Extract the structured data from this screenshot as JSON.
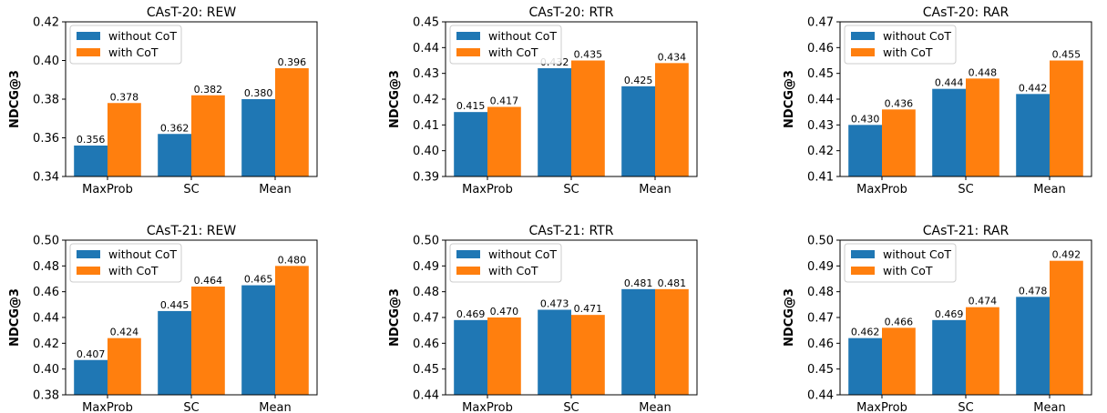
{
  "chart_data": [
    {
      "type": "bar",
      "title": "CAsT-20: REW",
      "ylabel": "NDCG@3",
      "categories": [
        "MaxProb",
        "SC",
        "Mean"
      ],
      "ylim": [
        0.34,
        0.42
      ],
      "yticks": [
        "0.34",
        "0.36",
        "0.38",
        "0.40",
        "0.42"
      ],
      "legend_position": "top-left",
      "series": [
        {
          "name": "without CoT",
          "values": [
            0.356,
            0.362,
            0.38
          ],
          "labels": [
            "0.356",
            "0.362",
            "0.380"
          ]
        },
        {
          "name": "with CoT",
          "values": [
            0.378,
            0.382,
            0.396
          ],
          "labels": [
            "0.378",
            "0.382",
            "0.396"
          ]
        }
      ]
    },
    {
      "type": "bar",
      "title": "CAsT-20: RTR",
      "ylabel": "NDCG@3",
      "categories": [
        "MaxProb",
        "SC",
        "Mean"
      ],
      "ylim": [
        0.39,
        0.45
      ],
      "yticks": [
        "0.39",
        "0.40",
        "0.41",
        "0.42",
        "0.43",
        "0.44",
        "0.45"
      ],
      "legend_position": "top-left",
      "series": [
        {
          "name": "without CoT",
          "values": [
            0.415,
            0.432,
            0.425
          ],
          "labels": [
            "0.415",
            "0.432",
            "0.425"
          ]
        },
        {
          "name": "with CoT",
          "values": [
            0.417,
            0.435,
            0.434
          ],
          "labels": [
            "0.417",
            "0.435",
            "0.434"
          ]
        }
      ]
    },
    {
      "type": "bar",
      "title": "CAsT-20: RAR",
      "ylabel": "NDCG@3",
      "categories": [
        "MaxProb",
        "SC",
        "Mean"
      ],
      "ylim": [
        0.41,
        0.47
      ],
      "yticks": [
        "0.41",
        "0.42",
        "0.43",
        "0.44",
        "0.45",
        "0.46",
        "0.47"
      ],
      "legend_position": "top-left",
      "series": [
        {
          "name": "without CoT",
          "values": [
            0.43,
            0.444,
            0.442
          ],
          "labels": [
            "0.430",
            "0.444",
            "0.442"
          ]
        },
        {
          "name": "with CoT",
          "values": [
            0.436,
            0.448,
            0.455
          ],
          "labels": [
            "0.436",
            "0.448",
            "0.455"
          ]
        }
      ]
    },
    {
      "type": "bar",
      "title": "CAsT-21: REW",
      "ylabel": "NDCG@3",
      "categories": [
        "MaxProb",
        "SC",
        "Mean"
      ],
      "ylim": [
        0.38,
        0.5
      ],
      "yticks": [
        "0.38",
        "0.40",
        "0.42",
        "0.44",
        "0.46",
        "0.48",
        "0.50"
      ],
      "legend_position": "top-left",
      "series": [
        {
          "name": "without CoT",
          "values": [
            0.407,
            0.445,
            0.465
          ],
          "labels": [
            "0.407",
            "0.445",
            "0.465"
          ]
        },
        {
          "name": "with CoT",
          "values": [
            0.424,
            0.464,
            0.48
          ],
          "labels": [
            "0.424",
            "0.464",
            "0.480"
          ]
        }
      ]
    },
    {
      "type": "bar",
      "title": "CAsT-21: RTR",
      "ylabel": "NDCG@3",
      "categories": [
        "MaxProb",
        "SC",
        "Mean"
      ],
      "ylim": [
        0.44,
        0.5
      ],
      "yticks": [
        "0.44",
        "0.45",
        "0.46",
        "0.47",
        "0.48",
        "0.49",
        "0.50"
      ],
      "legend_position": "top-left",
      "series": [
        {
          "name": "without CoT",
          "values": [
            0.469,
            0.473,
            0.481
          ],
          "labels": [
            "0.469",
            "0.473",
            "0.481"
          ]
        },
        {
          "name": "with CoT",
          "values": [
            0.47,
            0.471,
            0.481
          ],
          "labels": [
            "0.470",
            "0.471",
            "0.481"
          ]
        }
      ]
    },
    {
      "type": "bar",
      "title": "CAsT-21: RAR",
      "ylabel": "NDCG@3",
      "categories": [
        "MaxProb",
        "SC",
        "Mean"
      ],
      "ylim": [
        0.44,
        0.5
      ],
      "yticks": [
        "0.44",
        "0.45",
        "0.46",
        "0.47",
        "0.48",
        "0.49",
        "0.50"
      ],
      "legend_position": "top-left",
      "series": [
        {
          "name": "without CoT",
          "values": [
            0.462,
            0.469,
            0.478
          ],
          "labels": [
            "0.462",
            "0.469",
            "0.478"
          ]
        },
        {
          "name": "with CoT",
          "values": [
            0.466,
            0.474,
            0.492
          ],
          "labels": [
            "0.466",
            "0.474",
            "0.492"
          ]
        }
      ]
    }
  ],
  "colors": {
    "without_cot": "#1f77b4",
    "with_cot": "#ff7f0e",
    "axis": "#000000",
    "legend_border": "#cccccc"
  }
}
